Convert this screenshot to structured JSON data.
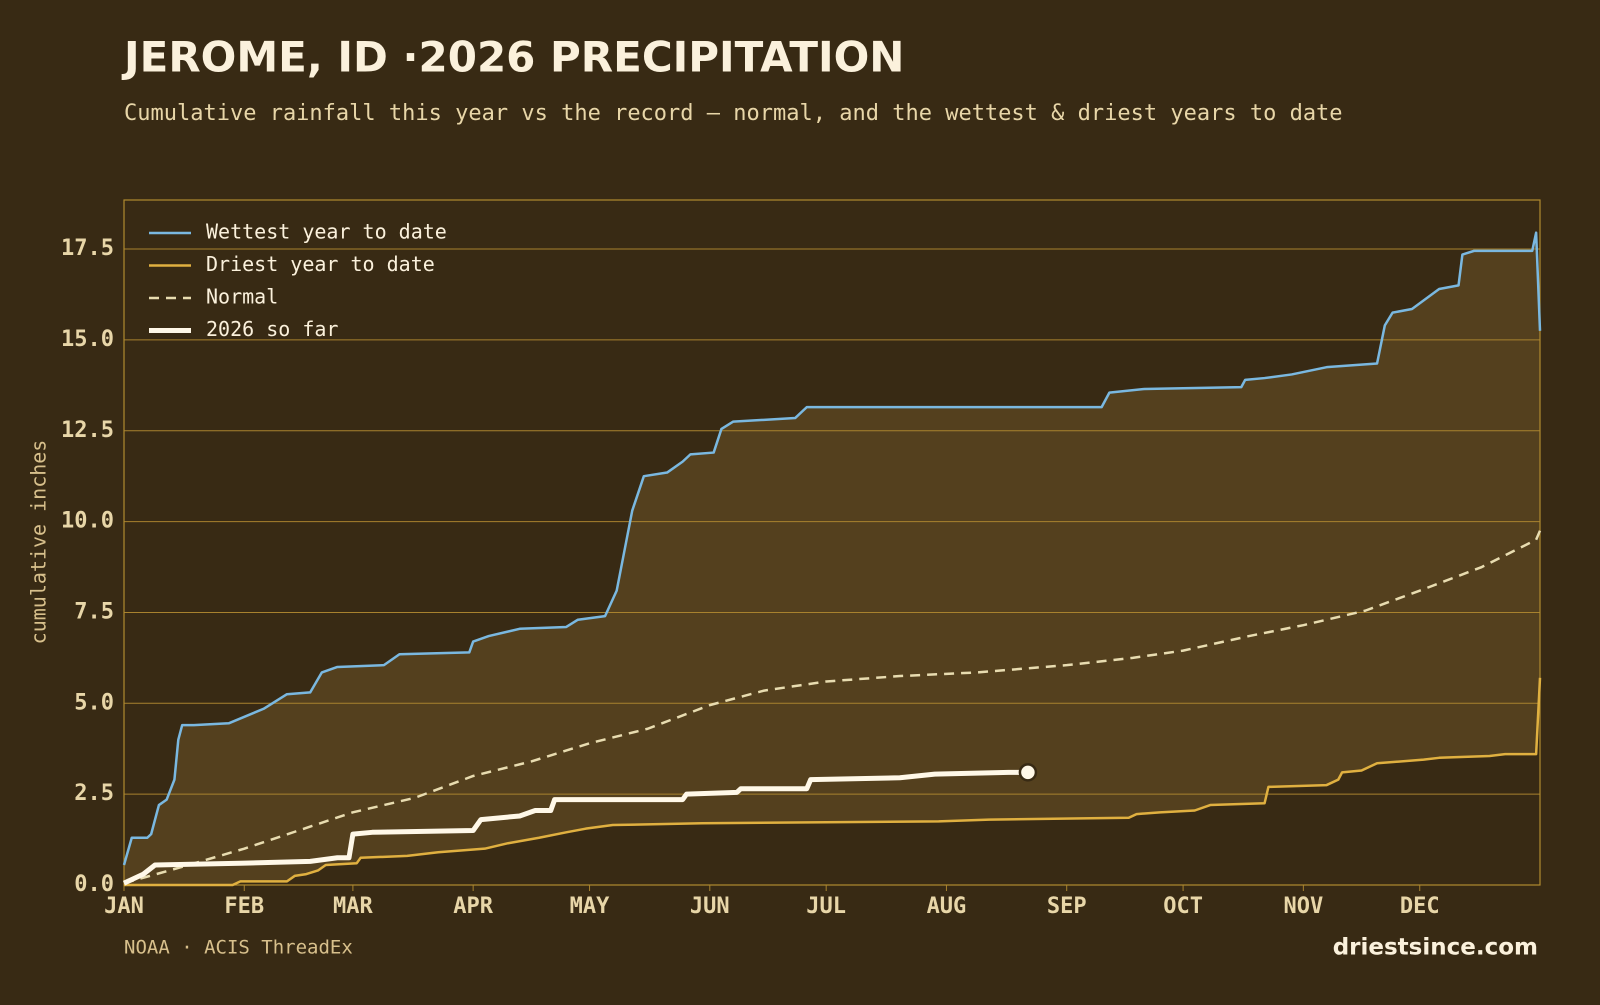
{
  "chart_data": {
    "type": "line",
    "title": "JEROME, ID ·2026 PRECIPITATION",
    "subtitle": "Cumulative rainfall this year vs the record — normal, and the wettest & driest years to date",
    "y_label": "cumulative inches",
    "source": "NOAA · ACIS ThreadEx",
    "site": "driestsince.com",
    "xlim": [
      0,
      365
    ],
    "xticks": [
      {
        "value": 0,
        "label": "JAN"
      },
      {
        "value": 31,
        "label": "FEB"
      },
      {
        "value": 59,
        "label": "MAR"
      },
      {
        "value": 90,
        "label": "APR"
      },
      {
        "value": 120,
        "label": "MAY"
      },
      {
        "value": 151,
        "label": "JUN"
      },
      {
        "value": 181,
        "label": "JUL"
      },
      {
        "value": 212,
        "label": "AUG"
      },
      {
        "value": 243,
        "label": "SEP"
      },
      {
        "value": 273,
        "label": "OCT"
      },
      {
        "value": 304,
        "label": "NOV"
      },
      {
        "value": 334,
        "label": "DEC"
      }
    ],
    "ylim": [
      0,
      18.85
    ],
    "yticks": [
      {
        "value": 0,
        "label": "0.0"
      },
      2.5,
      {
        "value": 5,
        "label": "5.0"
      },
      7.5,
      {
        "value": 10,
        "label": "10.0"
      },
      12.5,
      {
        "value": 15,
        "label": "15.0"
      },
      17.5
    ],
    "grid": true,
    "legend": "upper left",
    "band_color": "#54401e",
    "series": [
      {
        "name": "Wettest year to date",
        "color": "#7ab8e0",
        "style": "solid",
        "width": 2.5,
        "x": [
          0,
          2,
          6,
          7,
          9,
          11,
          13,
          14,
          15,
          18,
          27,
          36,
          42,
          48,
          51,
          55,
          67,
          71,
          89,
          90,
          94,
          102,
          114,
          117,
          124,
          127,
          129,
          131,
          134,
          140,
          144,
          146,
          152,
          154,
          157,
          173,
          176,
          189,
          252,
          254,
          263,
          288,
          289,
          294,
          301,
          310,
          323,
          325,
          327,
          332,
          339,
          344,
          345,
          348,
          363,
          364,
          365
        ],
        "values": [
          0.55,
          1.3,
          1.3,
          1.4,
          2.2,
          2.35,
          2.9,
          4.0,
          4.4,
          4.4,
          4.45,
          4.85,
          5.25,
          5.3,
          5.85,
          6.0,
          6.05,
          6.35,
          6.4,
          6.7,
          6.85,
          7.05,
          7.1,
          7.3,
          7.4,
          8.1,
          9.2,
          10.3,
          11.25,
          11.35,
          11.65,
          11.85,
          11.9,
          12.55,
          12.75,
          12.85,
          13.15,
          13.15,
          13.15,
          13.55,
          13.65,
          13.7,
          13.9,
          13.95,
          14.05,
          14.25,
          14.35,
          15.4,
          15.75,
          15.85,
          16.4,
          16.5,
          17.35,
          17.45,
          17.45,
          17.95,
          15.25
        ]
      },
      {
        "name": "Driest year to date",
        "color": "#e0b040",
        "style": "solid",
        "width": 2.5,
        "x": [
          0,
          28,
          30,
          42,
          44,
          47,
          50,
          52,
          60,
          61,
          73,
          81,
          93,
          99,
          107,
          114,
          119,
          126,
          149,
          210,
          223,
          259,
          261,
          267,
          276,
          280,
          294,
          295,
          310,
          313,
          314,
          319,
          323,
          335,
          339,
          352,
          356,
          364,
          365
        ],
        "values": [
          0,
          0,
          0.1,
          0.1,
          0.25,
          0.3,
          0.4,
          0.55,
          0.6,
          0.75,
          0.8,
          0.9,
          1.0,
          1.15,
          1.3,
          1.45,
          1.55,
          1.65,
          1.7,
          1.75,
          1.8,
          1.85,
          1.95,
          2.0,
          2.05,
          2.2,
          2.25,
          2.7,
          2.75,
          2.9,
          3.1,
          3.15,
          3.35,
          3.45,
          3.5,
          3.55,
          3.6,
          3.6,
          5.7
        ]
      },
      {
        "name": "Normal",
        "color": "#e8dcb0",
        "style": "dashed",
        "width": 2.5,
        "x": [
          0,
          15,
          31,
          45,
          59,
          75,
          90,
          105,
          120,
          135,
          151,
          165,
          181,
          200,
          220,
          243,
          260,
          273,
          290,
          304,
          320,
          334,
          350,
          364,
          365
        ],
        "values": [
          0.05,
          0.5,
          1.0,
          1.5,
          2.0,
          2.4,
          3.0,
          3.4,
          3.9,
          4.3,
          4.95,
          5.35,
          5.6,
          5.75,
          5.85,
          6.05,
          6.25,
          6.45,
          6.85,
          7.15,
          7.55,
          8.1,
          8.75,
          9.5,
          9.75
        ]
      },
      {
        "name": "2026 so far",
        "color": "#fff8e8",
        "style": "solid",
        "width": 5,
        "x": [
          0,
          5,
          8,
          30,
          48,
          55,
          58,
          59,
          64,
          90,
          92,
          102,
          106,
          110,
          111,
          144,
          145,
          158,
          159,
          176,
          177,
          200,
          209,
          228,
          233
        ],
        "values": [
          0.05,
          0.3,
          0.55,
          0.6,
          0.65,
          0.75,
          0.75,
          1.4,
          1.45,
          1.5,
          1.8,
          1.9,
          2.05,
          2.05,
          2.35,
          2.35,
          2.5,
          2.55,
          2.65,
          2.65,
          2.9,
          2.95,
          3.05,
          3.1,
          3.1
        ]
      }
    ]
  }
}
